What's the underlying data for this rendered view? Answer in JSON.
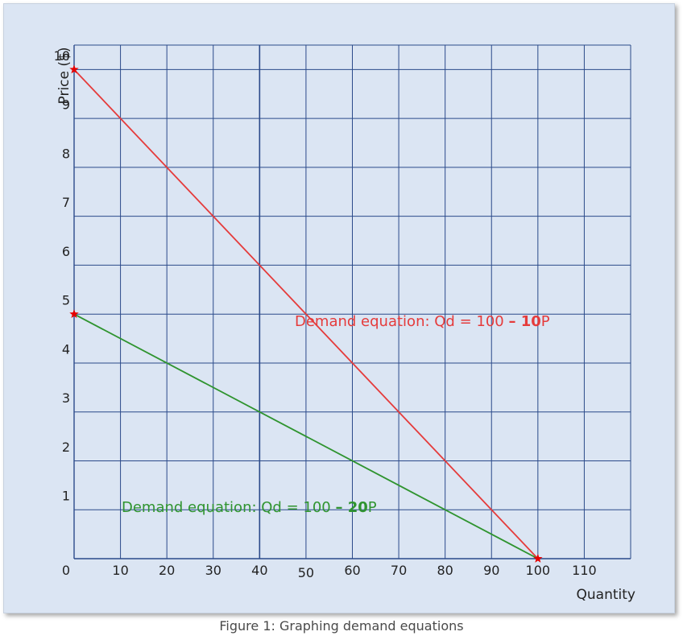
{
  "chart_data": {
    "type": "line",
    "caption": "Figure 1: Graphing demand equations",
    "xlabel": "Quantity",
    "ylabel": "Price ($)",
    "xlim": [
      0,
      120
    ],
    "ylim": [
      0,
      10.5
    ],
    "grid": true,
    "x_ticks": [
      0,
      10,
      20,
      30,
      40,
      50,
      60,
      70,
      80,
      90,
      100,
      110
    ],
    "y_ticks": [
      1,
      2,
      3,
      4,
      5,
      6,
      7,
      8,
      9,
      10
    ],
    "series": [
      {
        "color": "#e53b3b",
        "points": [
          [
            0,
            10
          ],
          [
            100,
            0
          ]
        ],
        "label_text": "Demand equation: Qd = 100 ",
        "label_bold": "– 10",
        "label_tail": "P"
      },
      {
        "color": "#2f942f",
        "points": [
          [
            0,
            5
          ],
          [
            100,
            0
          ]
        ],
        "label_text": "Demand equation: Qd = 100 ",
        "label_bold": "– 20",
        "label_tail": "P"
      }
    ],
    "markers": [
      {
        "x": 0,
        "y": 10,
        "color": "#e60000"
      },
      {
        "x": 0,
        "y": 5,
        "color": "#e60000"
      },
      {
        "x": 100,
        "y": 0,
        "color": "#e60000"
      }
    ]
  }
}
